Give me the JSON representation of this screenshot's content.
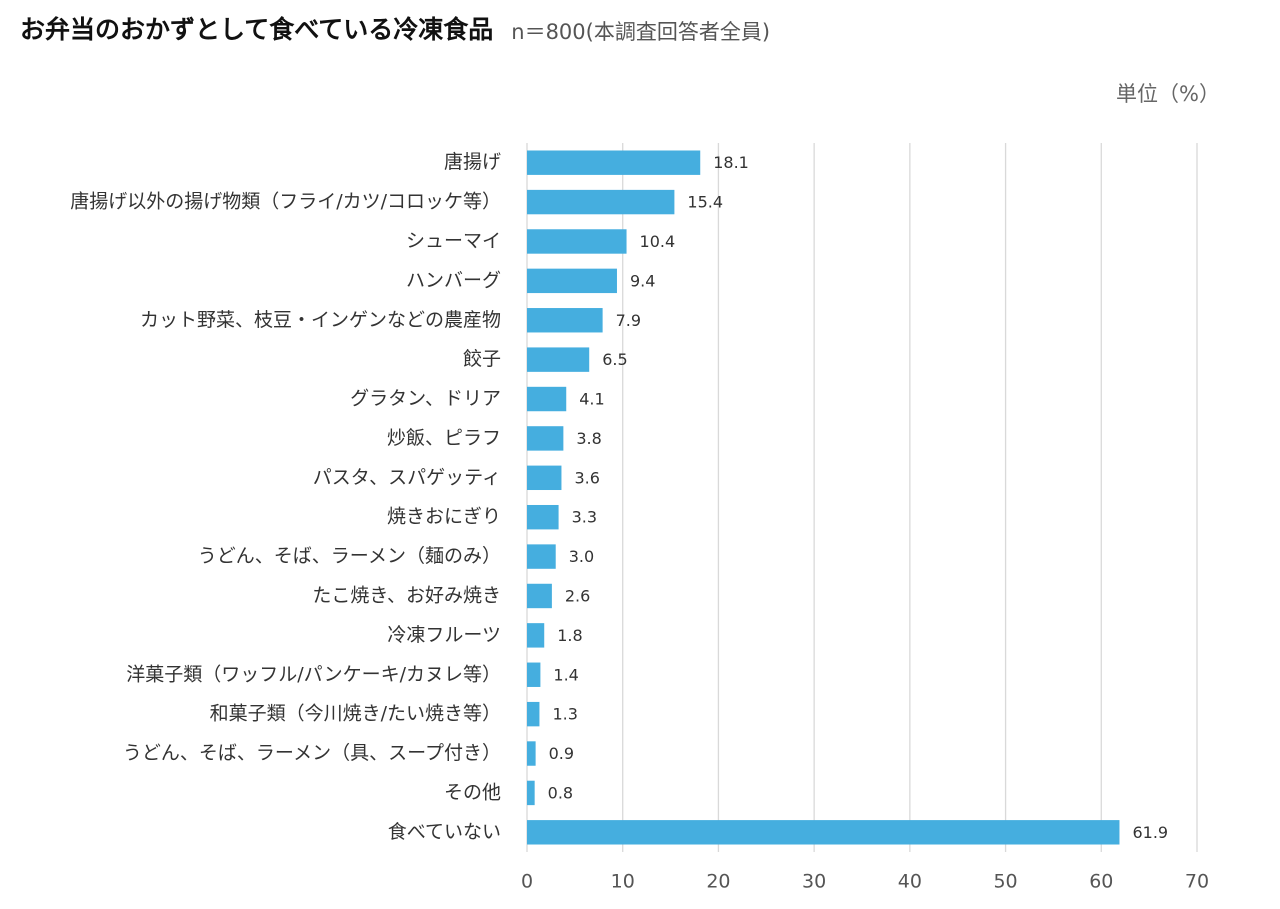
{
  "chart_data": {
    "type": "bar",
    "horizontal": true,
    "title": "お弁当のおかずとして食べている冷凍食品",
    "subtitle": "n＝800(本調査回答者全員)",
    "unit_label": "単位（%）",
    "categories": [
      "唐揚げ",
      "唐揚げ以外の揚げ物類（フライ/カツ/コロッケ等）",
      "シューマイ",
      "ハンバーグ",
      "カット野菜、枝豆・インゲンなどの農産物",
      "餃子",
      "グラタン、ドリア",
      "炒飯、ピラフ",
      "パスタ、スパゲッティ",
      "焼きおにぎり",
      "うどん、そば、ラーメン（麺のみ）",
      "たこ焼き、お好み焼き",
      "冷凍フルーツ",
      "洋菓子類（ワッフル/パンケーキ/カヌレ等）",
      "和菓子類（今川焼き/たい焼き等）",
      "うどん、そば、ラーメン（具、スープ付き）",
      "その他",
      "食べていない"
    ],
    "values": [
      18.1,
      15.4,
      10.4,
      9.4,
      7.9,
      6.5,
      4.1,
      3.8,
      3.6,
      3.3,
      3.0,
      2.6,
      1.8,
      1.4,
      1.3,
      0.9,
      0.8,
      61.9
    ],
    "value_labels": [
      "18.1",
      "15.4",
      "10.4",
      "9.4",
      "7.9",
      "6.5",
      "4.1",
      "3.8",
      "3.6",
      "3.3",
      "3.0",
      "2.6",
      "1.8",
      "1.4",
      "1.3",
      "0.9",
      "0.8",
      "61.9"
    ],
    "color": "#45aedf",
    "xlim": [
      0,
      70
    ],
    "xticks": [
      0,
      10,
      20,
      30,
      40,
      50,
      60,
      70
    ],
    "grid": true
  }
}
